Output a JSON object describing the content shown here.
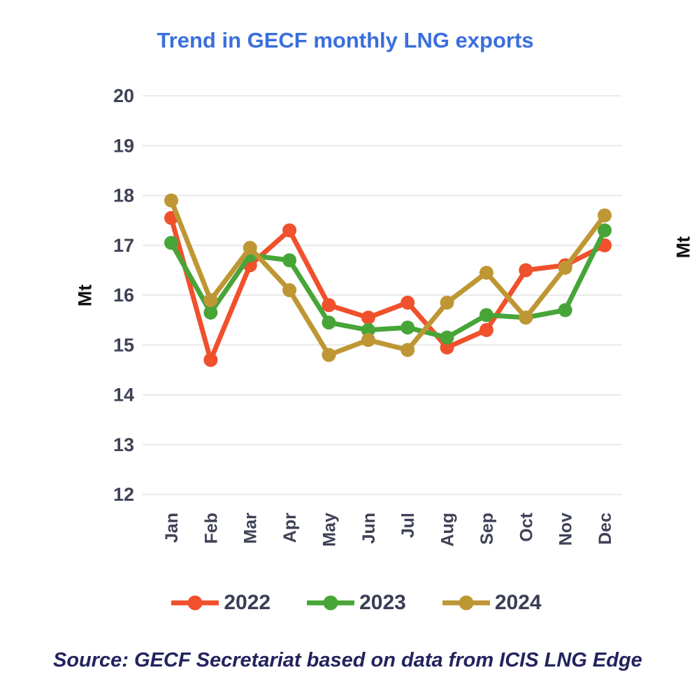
{
  "page": {
    "background": "#ffffff"
  },
  "chart": {
    "title": "Trend in GECF monthly LNG exports",
    "title_color": "#3A6FDD",
    "tick_color": "#3F4257",
    "gridline_color": "#EAEAEA"
  },
  "chart_data": {
    "type": "line",
    "title": "Trend in GECF monthly LNG exports",
    "xlabel": "",
    "ylabel": "Mt",
    "ylim": [
      12,
      20
    ],
    "ytick_step": 1,
    "yticks": [
      20,
      19,
      18,
      17,
      16,
      15,
      14,
      13,
      12
    ],
    "grid": true,
    "legend_position": "bottom",
    "marker": "circle",
    "categories": [
      "Jan",
      "Feb",
      "Mar",
      "Apr",
      "May",
      "Jun",
      "Jul",
      "Aug",
      "Sep",
      "Oct",
      "Nov",
      "Dec"
    ],
    "series": [
      {
        "name": "2022",
        "color": "#F0502C",
        "values": [
          17.55,
          14.7,
          16.6,
          17.3,
          15.8,
          15.55,
          15.85,
          14.95,
          15.3,
          16.5,
          16.6,
          17.0
        ]
      },
      {
        "name": "2023",
        "color": "#47A538",
        "values": [
          17.05,
          15.65,
          16.8,
          16.7,
          15.45,
          15.3,
          15.35,
          15.15,
          15.6,
          15.55,
          15.7,
          17.3
        ]
      },
      {
        "name": "2024",
        "color": "#BE9734",
        "values": [
          17.9,
          15.9,
          16.95,
          16.1,
          14.8,
          15.1,
          14.9,
          15.85,
          16.45,
          15.55,
          16.55,
          17.6
        ]
      }
    ]
  },
  "right_partial_chart": {
    "ylabel": "Mt"
  },
  "source": {
    "text": "Source: GECF Secretariat based on data from ICIS LNG Edge",
    "color": "#23235E"
  }
}
